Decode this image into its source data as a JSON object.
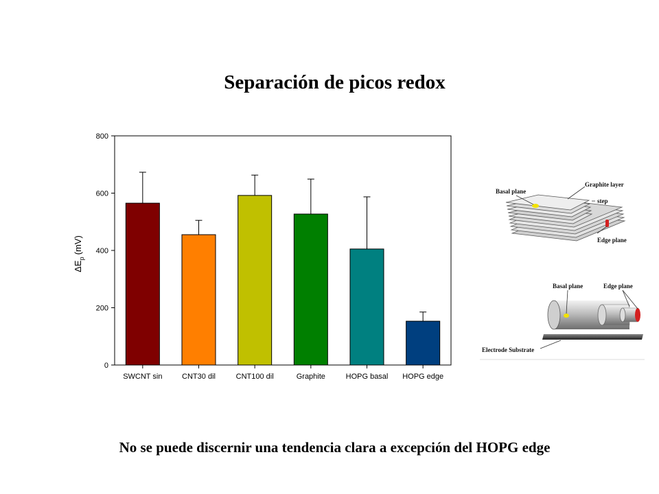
{
  "slide": {
    "title": "Separación de picos redox",
    "caption": "No se puede discernir una tendencia clara a excepción del HOPG edge"
  },
  "chart_data": {
    "type": "bar",
    "title": "",
    "xlabel": "",
    "ylabel": "ΔEp (mV)",
    "ylabel_parts": {
      "delta": "Δ",
      "symbol": "E",
      "subscript": "p",
      "unit": "(mV)"
    },
    "ylim": [
      0,
      800
    ],
    "yticks": [
      "0",
      "200",
      "400",
      "600",
      "800"
    ],
    "categories": [
      "SWCNT sin",
      "CNT30 dil",
      "CNT100 dil",
      "Graphite",
      "HOPG basal",
      "HOPG edge"
    ],
    "values": [
      565,
      455,
      592,
      527,
      405,
      153
    ],
    "errors": [
      108,
      50,
      71,
      122,
      182,
      32
    ],
    "colors": [
      "#7f0000",
      "#ff7f00",
      "#c0c000",
      "#007f00",
      "#008080",
      "#003f7f"
    ],
    "grid": false,
    "legend": "none"
  },
  "diagrams": {
    "graphite_layers": {
      "basal_plane": "Basal plane",
      "graphite_layer": "Graphite layer",
      "step": "step",
      "edge_plane": "Edge plane",
      "colors": {
        "basal_spot": "#f2e200",
        "edge_spot": "#d42020"
      }
    },
    "cylinder": {
      "basal_plane": "Basal plane",
      "edge_plane": "Edge plane",
      "electrode_substrate": "Electrode Substrate",
      "colors": {
        "basal_spot": "#f2e200",
        "edge_spot": "#d42020"
      }
    }
  }
}
